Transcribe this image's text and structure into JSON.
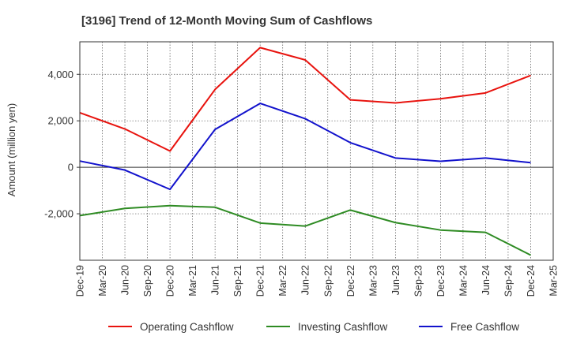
{
  "chart_data": {
    "type": "line",
    "title": "[3196]  Trend of 12-Month Moving Sum of Cashflows",
    "xlabel": "",
    "ylabel": "Amount (million yen)",
    "x": [
      "Dec-19",
      "Mar-20",
      "Jun-20",
      "Sep-20",
      "Dec-20",
      "Mar-21",
      "Jun-21",
      "Sep-21",
      "Dec-21",
      "Mar-22",
      "Jun-22",
      "Sep-22",
      "Dec-22",
      "Mar-23",
      "Jun-23",
      "Sep-23",
      "Dec-23",
      "Mar-24",
      "Jun-24",
      "Sep-24",
      "Dec-24",
      "Mar-25"
    ],
    "yticks": [
      -2000,
      0,
      2000,
      4000
    ],
    "ytick_labels": [
      "-2,000",
      "0",
      "2,000",
      "4,000"
    ],
    "ylim": [
      -4000,
      5400
    ],
    "grid": true,
    "legend_position": "bottom",
    "series": [
      {
        "name": "Operating Cashflow",
        "color": "#e8130e",
        "values": [
          2350,
          null,
          1650,
          null,
          700,
          null,
          3350,
          null,
          5150,
          null,
          4620,
          null,
          2900,
          null,
          2770,
          null,
          2950,
          null,
          3200,
          null,
          3950,
          null
        ]
      },
      {
        "name": "Investing Cashflow",
        "color": "#2e8b23",
        "values": [
          -2080,
          null,
          -1770,
          null,
          -1650,
          null,
          -1720,
          null,
          -2400,
          null,
          -2530,
          null,
          -1840,
          null,
          -2380,
          null,
          -2700,
          null,
          -2800,
          null,
          -3780,
          null
        ]
      },
      {
        "name": "Free Cashflow",
        "color": "#1212cc",
        "values": [
          270,
          null,
          -120,
          null,
          -950,
          null,
          1630,
          null,
          2750,
          null,
          2090,
          null,
          1060,
          null,
          400,
          null,
          260,
          null,
          400,
          null,
          200,
          null
        ]
      }
    ]
  }
}
